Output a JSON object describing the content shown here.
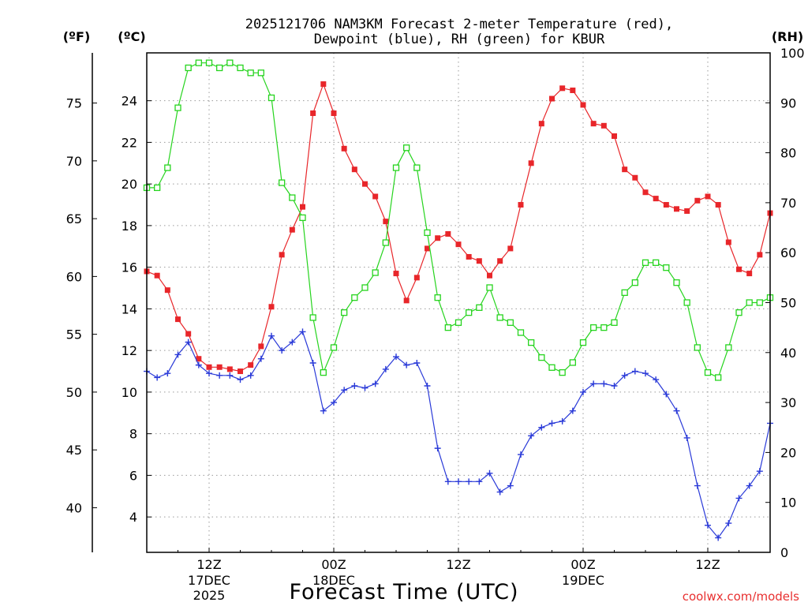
{
  "chart_data": {
    "type": "line",
    "title_line1": "2025121706 NAM3KM Forecast 2-meter Temperature (red),",
    "title_line2": "Dewpoint (blue), RH (green) for KBUR",
    "xlabel": "Forecast Time (UTC)",
    "left_outer_unit": "(ºF)",
    "left_inner_unit": "(ºC)",
    "right_unit": "(RH)",
    "credit": "coolwx.com/models",
    "x_range_hours": [
      0,
      60
    ],
    "x_ticks": [
      {
        "h": 6,
        "label1": "12Z",
        "label2": "17DEC",
        "label3": "2025"
      },
      {
        "h": 18,
        "label1": "00Z",
        "label2": "18DEC",
        "label3": ""
      },
      {
        "h": 30,
        "label1": "12Z",
        "label2": "",
        "label3": ""
      },
      {
        "h": 42,
        "label1": "00Z",
        "label2": "19DEC",
        "label3": ""
      },
      {
        "h": 54,
        "label1": "12Z",
        "label2": "",
        "label3": ""
      }
    ],
    "ylim_c": [
      2.3,
      26.3
    ],
    "ylim_rh": [
      0,
      100
    ],
    "yticks_c": [
      "4",
      "6",
      "8",
      "10",
      "12",
      "14",
      "16",
      "18",
      "20",
      "22",
      "24"
    ],
    "yticks_f": [
      "40",
      "45",
      "50",
      "55",
      "60",
      "65",
      "70",
      "75"
    ],
    "yticks_rh": [
      "0",
      "10",
      "20",
      "30",
      "40",
      "50",
      "60",
      "70",
      "80",
      "90",
      "100"
    ],
    "grid": true,
    "x_hours": [
      0,
      1,
      2,
      3,
      4,
      5,
      6,
      7,
      8,
      9,
      10,
      11,
      12,
      13,
      14,
      15,
      16,
      17,
      18,
      19,
      20,
      21,
      22,
      23,
      24,
      25,
      26,
      27,
      28,
      29,
      30,
      31,
      32,
      33,
      34,
      35,
      36,
      37,
      38,
      39,
      40,
      41,
      42,
      43,
      44,
      45,
      46,
      47,
      48,
      49,
      50,
      51,
      52,
      53,
      54,
      55,
      56,
      57,
      58,
      59,
      60
    ],
    "series": [
      {
        "name": "Temperature",
        "color": "#e8262a",
        "marker": "filled-square",
        "values_c": [
          15.8,
          15.6,
          14.9,
          13.5,
          12.8,
          11.6,
          11.2,
          11.2,
          11.1,
          11.0,
          11.3,
          12.2,
          14.1,
          16.6,
          17.8,
          18.9,
          23.4,
          24.8,
          23.4,
          21.7,
          20.7,
          20.0,
          19.4,
          18.2,
          15.7,
          14.4,
          15.5,
          16.9,
          17.4,
          17.6,
          17.1,
          16.5,
          16.3,
          15.6,
          16.3,
          16.9,
          19.0,
          21.0,
          22.9,
          24.1,
          24.6,
          24.5,
          23.8,
          22.9,
          22.8,
          22.3,
          20.7,
          20.3,
          19.6,
          19.3,
          19.0,
          18.8,
          18.7,
          19.2,
          19.4,
          19.0,
          17.2,
          15.9,
          15.7,
          16.6,
          18.6
        ]
      },
      {
        "name": "Dewpoint",
        "color": "#2a3ad8",
        "marker": "plus",
        "values_c": [
          11.0,
          10.7,
          10.9,
          11.8,
          12.4,
          11.3,
          10.9,
          10.8,
          10.8,
          10.6,
          10.8,
          11.6,
          12.7,
          12.0,
          12.4,
          12.9,
          11.4,
          9.1,
          9.5,
          10.1,
          10.3,
          10.2,
          10.4,
          11.1,
          11.7,
          11.3,
          11.4,
          10.3,
          7.3,
          5.7,
          5.7,
          5.7,
          5.7,
          6.1,
          5.2,
          5.5,
          7.0,
          7.9,
          8.3,
          8.5,
          8.6,
          9.1,
          10.0,
          10.4,
          10.4,
          10.3,
          10.8,
          11.0,
          10.9,
          10.6,
          9.9,
          9.1,
          7.8,
          5.5,
          3.6,
          3.0,
          3.7,
          4.9,
          5.5,
          6.2,
          8.5
        ]
      },
      {
        "name": "RH",
        "color": "#26d41e",
        "marker": "open-square",
        "values_rh": [
          73,
          73,
          77,
          89,
          97,
          98,
          98,
          97,
          98,
          97,
          96,
          96,
          91,
          74,
          71,
          67,
          47,
          36,
          41,
          48,
          51,
          53,
          56,
          62,
          77,
          81,
          77,
          64,
          51,
          45,
          46,
          48,
          49,
          53,
          47,
          46,
          44,
          42,
          39,
          37,
          36,
          38,
          42,
          45,
          45,
          46,
          52,
          54,
          58,
          58,
          57,
          54,
          50,
          41,
          36,
          35,
          41,
          48,
          50,
          50,
          51
        ]
      }
    ]
  }
}
